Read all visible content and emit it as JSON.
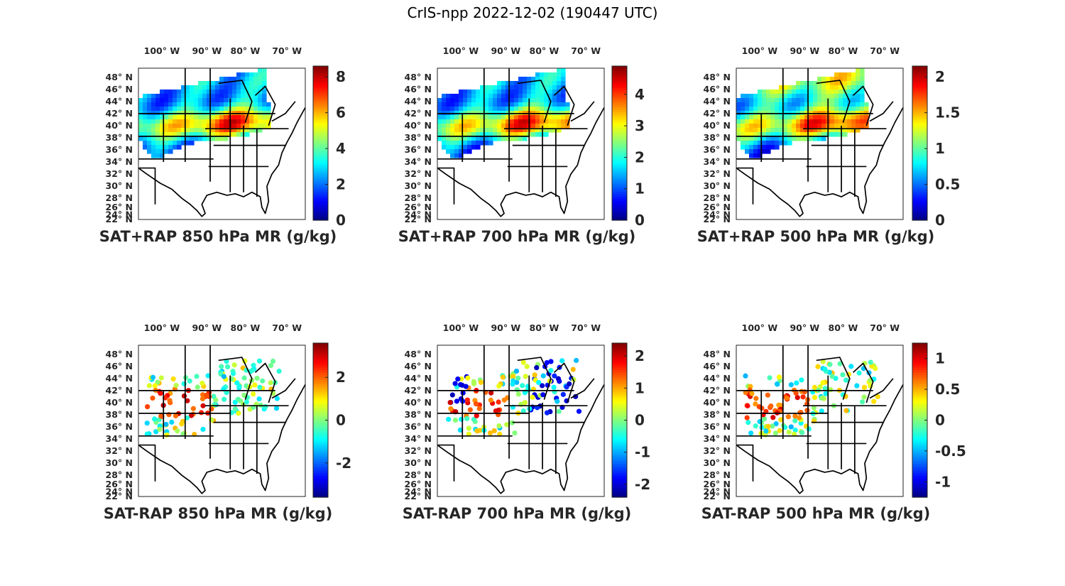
{
  "title": "CrIS-npp 2022-12-02 (190447 UTC)",
  "map": {
    "lon_labels": [
      "100",
      "90",
      "80",
      "70"
    ],
    "lon_hemisphere": "W",
    "lat_labels": [
      "48",
      "46",
      "44",
      "42",
      "40",
      "38",
      "36",
      "34",
      "32",
      "30",
      "28",
      "26",
      "24",
      "22"
    ],
    "lat_hemisphere": "N",
    "degree_symbol": "°"
  },
  "panels": [
    {
      "id": "sum-850",
      "caption": "SAT+RAP 850 hPa MR (g/kg)",
      "colormap": "jet",
      "colorbar": {
        "min": 0,
        "max": 8.6,
        "ticks": [
          "0",
          "2",
          "4",
          "6",
          "8"
        ],
        "tick_values": [
          0,
          2,
          4,
          6,
          8
        ]
      }
    },
    {
      "id": "sum-700",
      "caption": "SAT+RAP 700 hPa MR (g/kg)",
      "colormap": "jet",
      "colorbar": {
        "min": 0,
        "max": 4.9,
        "ticks": [
          "0",
          "1",
          "2",
          "3",
          "4"
        ],
        "tick_values": [
          0,
          1,
          2,
          3,
          4
        ]
      }
    },
    {
      "id": "sum-500",
      "caption": "SAT+RAP 500 hPa MR (g/kg)",
      "colormap": "jet",
      "colorbar": {
        "min": 0,
        "max": 2.15,
        "ticks": [
          "0",
          "0.5",
          "1",
          "1.5",
          "2"
        ],
        "tick_values": [
          0,
          0.5,
          1,
          1.5,
          2
        ]
      }
    },
    {
      "id": "diff-850",
      "caption": "SAT-RAP 850 hPa MR (g/kg)",
      "colormap": "jet",
      "colorbar": {
        "min": -3.6,
        "max": 3.6,
        "ticks": [
          "-2",
          "0",
          "2"
        ],
        "tick_values": [
          -2,
          0,
          2
        ]
      }
    },
    {
      "id": "diff-700",
      "caption": "SAT-RAP 700 hPa MR (g/kg)",
      "colormap": "jet",
      "colorbar": {
        "min": -2.4,
        "max": 2.4,
        "ticks": [
          "-2",
          "-1",
          "0",
          "1",
          "2"
        ],
        "tick_values": [
          -2,
          -1,
          0,
          1,
          2
        ]
      }
    },
    {
      "id": "diff-500",
      "caption": "SAT-RAP 500 hPa MR (g/kg)",
      "colormap": "jet",
      "colorbar": {
        "min": -1.25,
        "max": 1.25,
        "ticks": [
          "-1",
          "-0.5",
          "0",
          "0.5",
          "1"
        ],
        "tick_values": [
          -1,
          -0.5,
          0,
          0.5,
          1
        ]
      }
    }
  ]
}
